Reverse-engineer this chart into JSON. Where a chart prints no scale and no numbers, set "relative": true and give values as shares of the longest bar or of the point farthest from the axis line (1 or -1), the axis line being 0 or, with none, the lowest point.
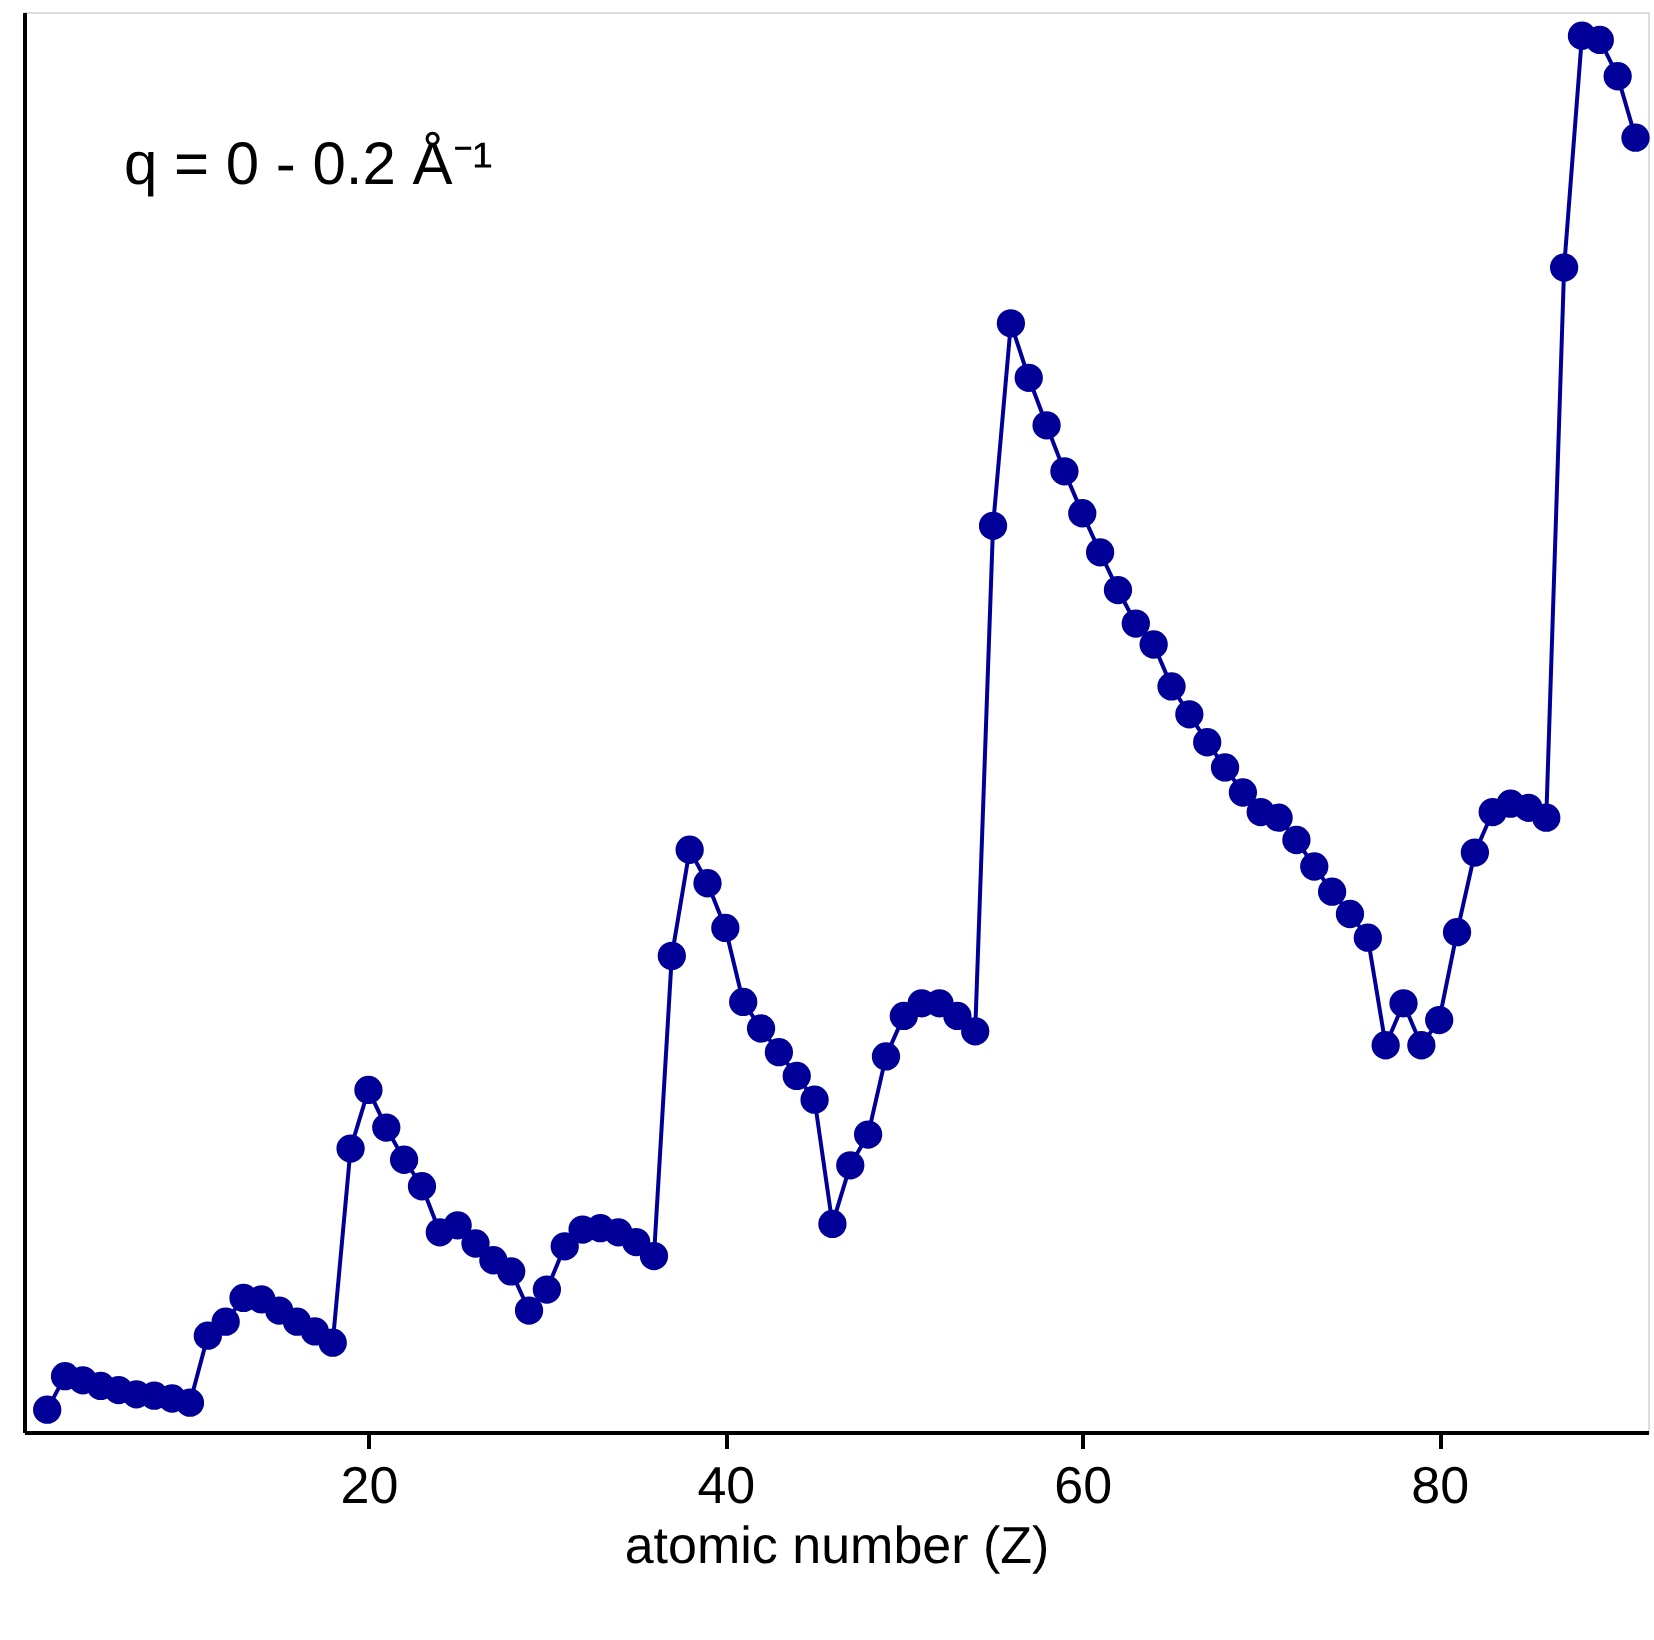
{
  "chart_data": {
    "type": "line",
    "relative": true,
    "xlabel": "atomic number (Z)",
    "annotations": [
      "q = 0 - 0.2 Å⁻¹"
    ],
    "x": [
      2,
      3,
      4,
      5,
      6,
      7,
      8,
      9,
      10,
      11,
      12,
      13,
      14,
      15,
      16,
      17,
      18,
      19,
      20,
      21,
      22,
      23,
      24,
      25,
      26,
      27,
      28,
      29,
      30,
      31,
      32,
      33,
      34,
      35,
      36,
      37,
      38,
      39,
      40,
      41,
      42,
      43,
      44,
      45,
      46,
      47,
      48,
      49,
      50,
      51,
      52,
      53,
      54,
      55,
      56,
      57,
      58,
      59,
      60,
      61,
      62,
      63,
      64,
      65,
      66,
      67,
      68,
      69,
      70,
      71,
      72,
      73,
      74,
      75,
      76,
      77,
      78,
      79,
      80,
      81,
      82,
      83,
      84,
      85,
      86,
      87,
      88,
      89,
      90,
      91
    ],
    "series": [
      {
        "color": "#000099",
        "values": [
          0.016,
          0.04,
          0.037,
          0.033,
          0.03,
          0.027,
          0.026,
          0.024,
          0.021,
          0.069,
          0.079,
          0.096,
          0.095,
          0.087,
          0.079,
          0.072,
          0.064,
          0.203,
          0.245,
          0.218,
          0.195,
          0.176,
          0.143,
          0.148,
          0.135,
          0.123,
          0.115,
          0.087,
          0.102,
          0.133,
          0.145,
          0.146,
          0.143,
          0.136,
          0.126,
          0.341,
          0.417,
          0.393,
          0.361,
          0.308,
          0.289,
          0.272,
          0.255,
          0.238,
          0.149,
          0.191,
          0.213,
          0.269,
          0.298,
          0.307,
          0.307,
          0.298,
          0.287,
          0.649,
          0.794,
          0.755,
          0.721,
          0.688,
          0.658,
          0.63,
          0.603,
          0.579,
          0.564,
          0.534,
          0.514,
          0.494,
          0.476,
          0.458,
          0.444,
          0.44,
          0.424,
          0.405,
          0.387,
          0.371,
          0.354,
          0.277,
          0.307,
          0.277,
          0.295,
          0.358,
          0.415,
          0.444,
          0.45,
          0.447,
          0.44,
          0.834,
          1,
          0.997,
          0.971,
          0.927
        ]
      }
    ],
    "xlim": [
      0.7,
      91.7
    ],
    "xticks": [
      20,
      40,
      60,
      80
    ],
    "tick_labels": "x",
    "grid": false,
    "marker": "circle",
    "line_style": "solid"
  }
}
